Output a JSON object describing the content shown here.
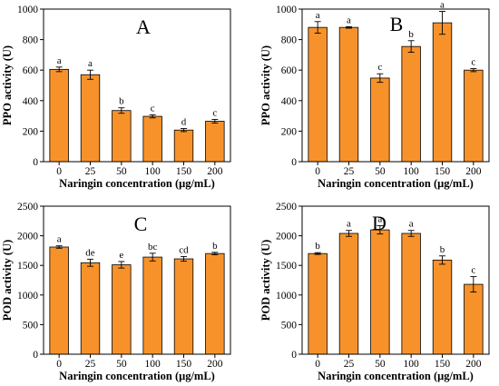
{
  "chart_data": [
    {
      "type": "bar",
      "panel_label": "A",
      "xlabel": "Naringin concentration (μg/mL)",
      "ylabel": "PPO activity (U)",
      "categories": [
        "0",
        "25",
        "50",
        "100",
        "150",
        "200"
      ],
      "values": [
        605,
        570,
        335,
        297,
        207,
        265
      ],
      "errors": [
        15,
        30,
        18,
        10,
        10,
        12
      ],
      "letters": [
        "a",
        "a",
        "b",
        "c",
        "d",
        "c"
      ],
      "ylim": [
        0,
        1000
      ],
      "yticks": [
        0,
        200,
        400,
        600,
        800,
        1000
      ],
      "bar_color": "#F7922B",
      "grid": false
    },
    {
      "type": "bar",
      "panel_label": "B",
      "xlabel": "Naringin concentration (μg/mL)",
      "ylabel": "PPO activity (U)",
      "categories": [
        "0",
        "25",
        "50",
        "100",
        "150",
        "200"
      ],
      "values": [
        880,
        880,
        548,
        755,
        910,
        600
      ],
      "errors": [
        38,
        5,
        28,
        38,
        75,
        10
      ],
      "letters": [
        "a",
        "a",
        "c",
        "b",
        "a",
        "c"
      ],
      "ylim": [
        0,
        1000
      ],
      "yticks": [
        0,
        200,
        400,
        600,
        800,
        1000
      ],
      "bar_color": "#F7922B",
      "grid": false
    },
    {
      "type": "bar",
      "panel_label": "C",
      "xlabel": "Naringin concentration (μg/mL)",
      "ylabel": "POD activity (U)",
      "categories": [
        "0",
        "25",
        "50",
        "100",
        "150",
        "200"
      ],
      "values": [
        1810,
        1545,
        1510,
        1640,
        1610,
        1700
      ],
      "errors": [
        20,
        60,
        55,
        65,
        40,
        20
      ],
      "letters": [
        "a",
        "de",
        "e",
        "bc",
        "cd",
        "b"
      ],
      "ylim": [
        0,
        2500
      ],
      "yticks": [
        0,
        500,
        1000,
        1500,
        2000,
        2500
      ],
      "bar_color": "#F7922B",
      "grid": false
    },
    {
      "type": "bar",
      "panel_label": "D",
      "xlabel": "Naringin concentration (μg/mL)",
      "ylabel": "POD activity (U)",
      "categories": [
        "0",
        "25",
        "50",
        "100",
        "150",
        "200"
      ],
      "values": [
        1700,
        2040,
        2100,
        2040,
        1590,
        1180
      ],
      "errors": [
        15,
        50,
        70,
        50,
        70,
        130
      ],
      "letters": [
        "b",
        "a",
        "a",
        "a",
        "b",
        "c"
      ],
      "ylim": [
        0,
        2500
      ],
      "yticks": [
        0,
        500,
        1000,
        1500,
        2000,
        2500
      ],
      "bar_color": "#F7922B",
      "grid": false
    }
  ]
}
